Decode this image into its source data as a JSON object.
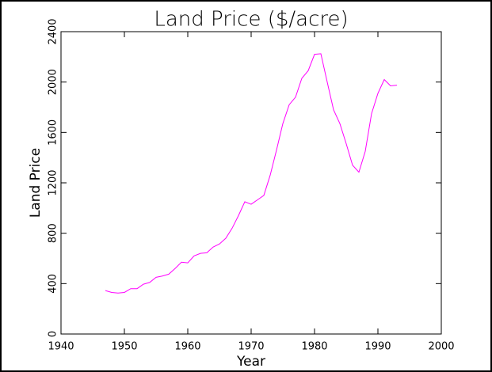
{
  "chart_data": {
    "type": "line",
    "title": "Land Price ($/acre)",
    "x_label": "Year",
    "y_label": "Land Price",
    "x": [
      1947,
      1948,
      1949,
      1950,
      1951,
      1952,
      1953,
      1954,
      1955,
      1956,
      1957,
      1958,
      1959,
      1960,
      1961,
      1962,
      1963,
      1964,
      1965,
      1966,
      1967,
      1968,
      1969,
      1970,
      1971,
      1972,
      1973,
      1974,
      1975,
      1976,
      1977,
      1978,
      1979,
      1980,
      1981,
      1982,
      1983,
      1984,
      1985,
      1986,
      1987,
      1988,
      1989,
      1990,
      1991,
      1992,
      1993
    ],
    "series": [
      {
        "name": "Land Price",
        "color": "#ff00ff",
        "values": [
          345,
          330,
          325,
          330,
          360,
          360,
          395,
          410,
          450,
          460,
          475,
          520,
          570,
          565,
          620,
          640,
          645,
          690,
          715,
          760,
          840,
          940,
          1050,
          1030,
          1065,
          1100,
          1260,
          1460,
          1670,
          1820,
          1880,
          2030,
          2090,
          2220,
          2225,
          2000,
          1780,
          1670,
          1510,
          1340,
          1285,
          1450,
          1750,
          1910,
          2020,
          1970,
          1975
        ]
      }
    ],
    "xlim": [
      1940,
      2000
    ],
    "xticks": [
      1940,
      1950,
      1960,
      1970,
      1980,
      1990,
      2000
    ],
    "ylim": [
      0,
      2400
    ],
    "yticks": [
      0,
      400,
      800,
      1200,
      1600,
      2000,
      2400
    ]
  }
}
